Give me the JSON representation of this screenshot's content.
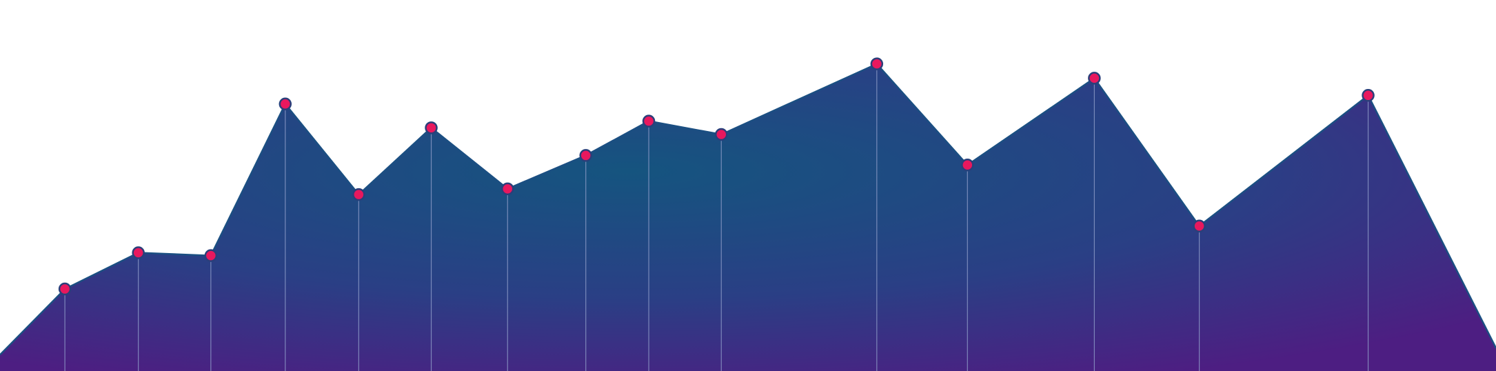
{
  "chart_data": {
    "type": "area",
    "x": [
      0,
      68,
      145,
      221,
      299,
      376,
      452,
      532,
      614,
      680,
      756,
      919,
      1014,
      1147,
      1257,
      1434,
      1568
    ],
    "values": [
      17,
      86,
      124,
      121,
      280,
      185,
      255,
      191,
      226,
      262,
      248,
      322,
      216,
      307,
      152,
      289,
      24
    ],
    "xlim": [
      0,
      1568
    ],
    "ylim": [
      0,
      389
    ],
    "color": "#1b4f82",
    "marker_color": "#e8185e"
  }
}
